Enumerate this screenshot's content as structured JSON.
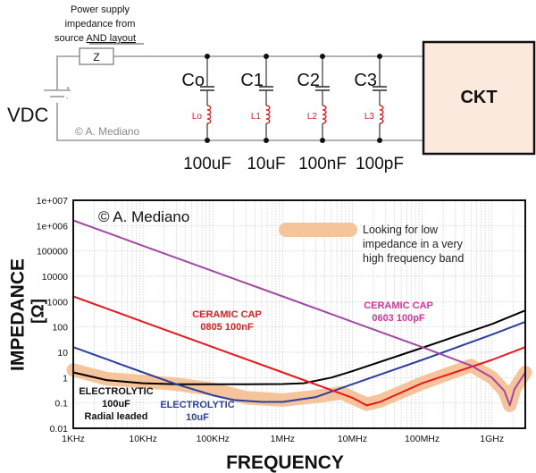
{
  "schematic": {
    "supply_note": [
      "Power supply",
      "impedance from",
      "source "
    ],
    "supply_note_underlined": "AND layout",
    "z_label": "Z",
    "source_label": "VDC",
    "plus": "+",
    "minus": "-",
    "copyright": "© A. Mediano",
    "load_label": "CKT",
    "capacitors": [
      {
        "name": "Co",
        "inductor": "Lo",
        "value": "100uF"
      },
      {
        "name": "C1",
        "inductor": "L1",
        "value": "10uF"
      },
      {
        "name": "C2",
        "inductor": "L2",
        "value": "100nF"
      },
      {
        "name": "C3",
        "inductor": "L3",
        "value": "100pF"
      }
    ],
    "colors": {
      "wire": "#999999",
      "inductor": "#e8191c",
      "load_fill": "#fbe9dd"
    }
  },
  "chart_data": {
    "type": "line",
    "title": "",
    "watermark": "© A. Mediano",
    "xlabel": "FREQUENCY",
    "ylabel": [
      "IMPEDANCE",
      "[Ω]"
    ],
    "xscale": "log",
    "yscale": "log",
    "xlim": [
      1000,
      3000000000
    ],
    "ylim": [
      0.01,
      10000000
    ],
    "grid": true,
    "x_ticks": [
      1000,
      10000,
      100000,
      1000000,
      10000000,
      100000000,
      1000000000
    ],
    "x_tick_labels": [
      "1KHz",
      "10KHz",
      "100KHz",
      "1MHz",
      "10MHz",
      "100MHz",
      "1GHz"
    ],
    "y_ticks": [
      0.01,
      0.1,
      1,
      10,
      100,
      1000,
      10000,
      100000,
      1000000,
      10000000
    ],
    "y_tick_labels": [
      "0.01",
      "0.1",
      "1",
      "10",
      "100",
      "1000",
      "10000",
      "100000",
      "1e+006",
      "1e+007"
    ],
    "series": [
      {
        "name": "ELECTROLYTIC 100uF Radial leaded",
        "color": "#000000",
        "points": [
          [
            1000,
            1.6
          ],
          [
            3000,
            0.8
          ],
          [
            10000,
            0.6
          ],
          [
            30000,
            0.55
          ],
          [
            100000,
            0.55
          ],
          [
            300000,
            0.55
          ],
          [
            1000000,
            0.56
          ],
          [
            2000000,
            0.6
          ],
          [
            5000000,
            1.0
          ],
          [
            10000000,
            1.8
          ],
          [
            100000000,
            15
          ],
          [
            1000000000,
            130
          ],
          [
            3000000000,
            450
          ]
        ]
      },
      {
        "name": "ELECTROLYTIC 10uF",
        "color": "#2b3fa0",
        "points": [
          [
            1000,
            16
          ],
          [
            10000,
            1.6
          ],
          [
            30000,
            0.55
          ],
          [
            100000,
            0.2
          ],
          [
            200000,
            0.13
          ],
          [
            500000,
            0.11
          ],
          [
            1000000,
            0.11
          ],
          [
            3000000,
            0.17
          ],
          [
            10000000,
            0.55
          ],
          [
            100000000,
            5
          ],
          [
            1000000000,
            50
          ],
          [
            3000000000,
            160
          ]
        ]
      },
      {
        "name": "CERAMIC CAP 0805 100nF",
        "color": "#e8191c",
        "points": [
          [
            1000,
            1600
          ],
          [
            10000,
            160
          ],
          [
            100000,
            16
          ],
          [
            1000000,
            1.6
          ],
          [
            10000000,
            0.16
          ],
          [
            16000000,
            0.08
          ],
          [
            25000000,
            0.11
          ],
          [
            100000000,
            0.6
          ],
          [
            1000000000,
            5
          ],
          [
            3000000000,
            16
          ]
        ]
      },
      {
        "name": "CERAMIC CAP 0603 100pF",
        "color": "#a349a4",
        "points": [
          [
            1000,
            1600000
          ],
          [
            10000,
            160000
          ],
          [
            100000,
            16000
          ],
          [
            1000000,
            1600
          ],
          [
            10000000,
            160
          ],
          [
            100000000,
            16
          ],
          [
            500000000,
            3
          ],
          [
            1000000000,
            1
          ],
          [
            1500000000,
            0.3
          ],
          [
            1800000000,
            0.08
          ],
          [
            2100000000,
            0.35
          ],
          [
            3000000000,
            1.6
          ]
        ]
      }
    ],
    "highlight_band": {
      "color": "#f5c49a",
      "points": [
        [
          1000,
          2
        ],
        [
          3000,
          0.9
        ],
        [
          30000,
          0.55
        ],
        [
          100000,
          0.35
        ],
        [
          300000,
          0.16
        ],
        [
          1000000,
          0.13
        ],
        [
          3000000,
          0.18
        ],
        [
          7000000,
          0.25
        ],
        [
          16000000,
          0.09
        ],
        [
          25000000,
          0.12
        ],
        [
          100000000,
          0.6
        ],
        [
          500000000,
          3
        ],
        [
          1000000000,
          1
        ],
        [
          1500000000,
          0.3
        ],
        [
          1800000000,
          0.08
        ],
        [
          2100000000,
          0.35
        ],
        [
          3000000000,
          1.6
        ]
      ]
    },
    "annotations": [
      {
        "id": "electrolytic-100uF",
        "lines": [
          "ELECTROLYTIC",
          "100uF",
          "Radial leaded"
        ],
        "color": "#111111"
      },
      {
        "id": "electrolytic-10uF",
        "lines": [
          "ELECTROLYTIC",
          "10uF"
        ],
        "color": "#2b3fa0"
      },
      {
        "id": "ceramic-100nF",
        "lines": [
          "CERAMIC CAP",
          "0805 100nF"
        ],
        "color": "#e8191c"
      },
      {
        "id": "ceramic-100pF",
        "lines": [
          "CERAMIC CAP",
          "0603 100pF"
        ],
        "color": "#e0309a"
      }
    ],
    "legend": {
      "text": [
        "Looking for low",
        "impedance in a very",
        "high frequency band"
      ],
      "placement": "top-right"
    }
  }
}
